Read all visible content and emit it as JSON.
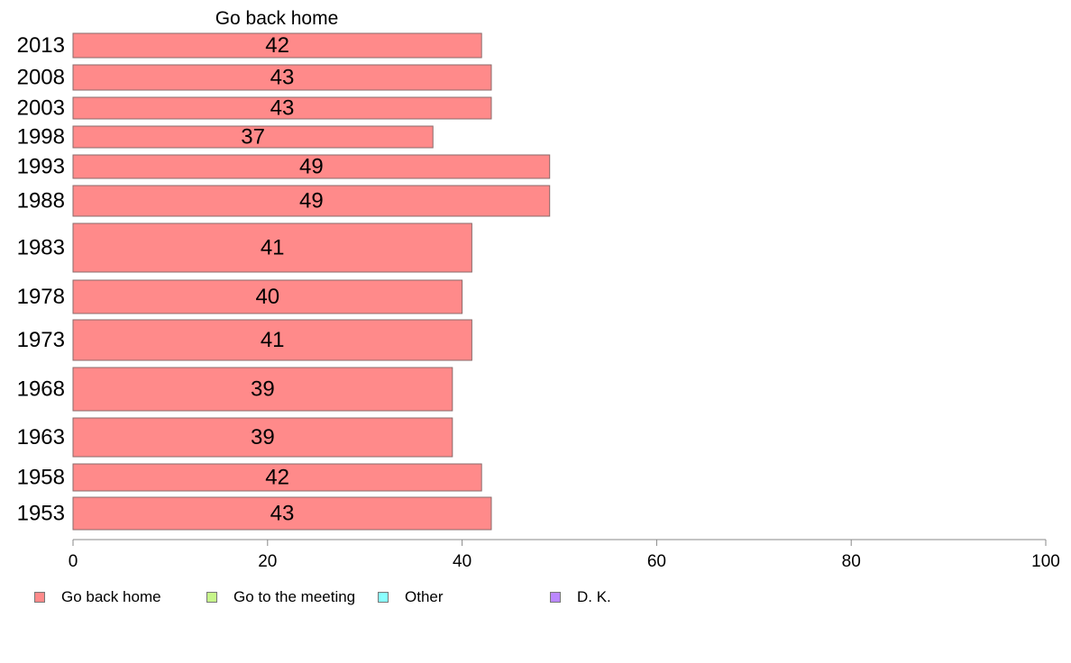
{
  "chart_data": {
    "type": "bar",
    "orientation": "horizontal",
    "title": "Go back home",
    "categories": [
      "2013",
      "2008",
      "2003",
      "1998",
      "1993",
      "1988",
      "1983",
      "1978",
      "1973",
      "1968",
      "1963",
      "1958",
      "1953"
    ],
    "series": [
      {
        "name": "Go back home",
        "color": "#ff8a8a",
        "values": [
          42,
          43,
          43,
          37,
          49,
          49,
          41,
          40,
          41,
          39,
          39,
          42,
          43
        ],
        "labels": [
          "42",
          "43",
          "43",
          "37",
          "49",
          "49",
          "41",
          "40",
          "41",
          "39",
          "39",
          "42",
          "43"
        ]
      }
    ],
    "xlim": [
      0,
      100
    ],
    "xticks": [
      "0",
      "20",
      "40",
      "60",
      "80",
      "100"
    ],
    "grid": false,
    "legend": {
      "position": "bottom-left",
      "items": [
        {
          "name": "Go back home",
          "color": "#ff8a8a"
        },
        {
          "name": "Go to the meeting",
          "color": "#c6f58a"
        },
        {
          "name": "Other",
          "color": "#8affff"
        },
        {
          "name": "D. K.",
          "color": "#bb88ff"
        }
      ]
    }
  }
}
